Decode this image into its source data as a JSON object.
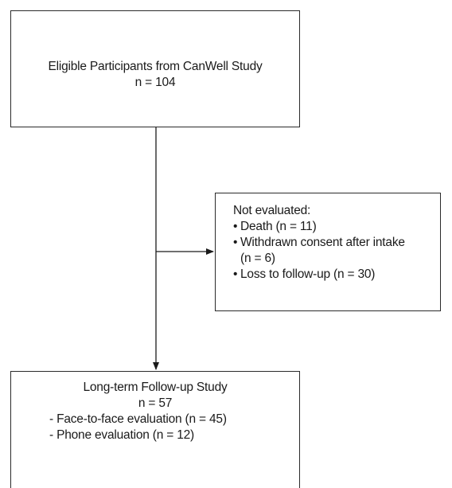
{
  "top_box": {
    "title": "Eligible Participants from CanWell Study",
    "count": "n = 104"
  },
  "exclusion_box": {
    "header": "Not evaluated:",
    "bullet_symbol": "•",
    "items": [
      {
        "line1": "Death (n = 11)"
      },
      {
        "line1": "Withdrawn consent after intake",
        "line2": "(n = 6)"
      },
      {
        "line1": "Loss to follow-up (n = 30)"
      }
    ]
  },
  "bottom_box": {
    "title": "Long-term Follow-up Study",
    "count": "n = 57",
    "sub_items": [
      "- Face-to-face evaluation (n = 45)",
      "- Phone evaluation (n = 12)"
    ]
  }
}
